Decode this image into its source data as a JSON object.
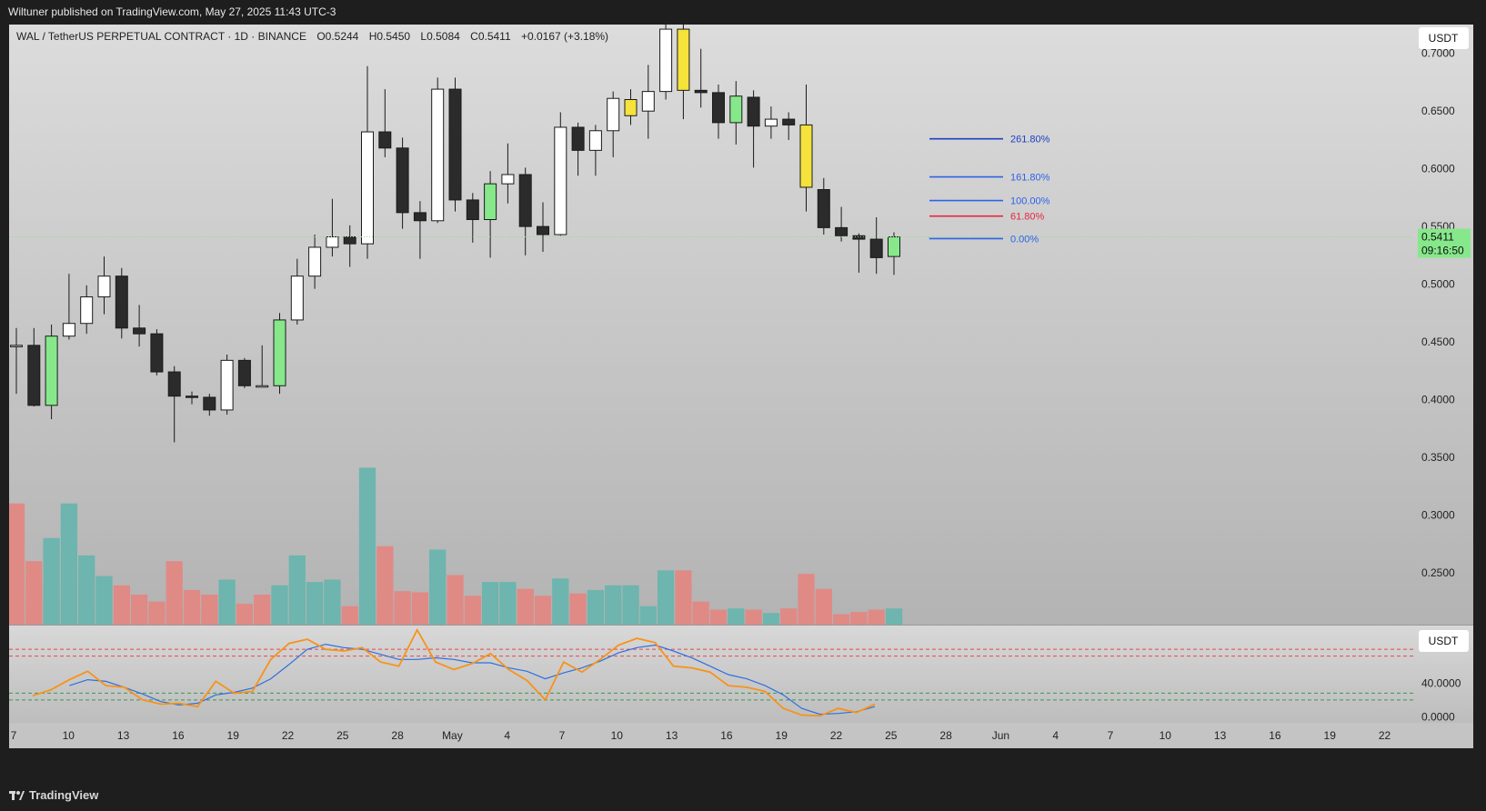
{
  "header": {
    "published": "Wiltuner published on TradingView.com, May 27, 2025 11:43 UTC-3"
  },
  "legend": {
    "symbol": "WAL / TetherUS PERPETUAL CONTRACT · 1D · BINANCE",
    "open": "O0.5244",
    "high": "H0.5450",
    "low": "L0.5084",
    "close": "C0.5411",
    "change": "+0.0167 (+3.18%)"
  },
  "price_axis": {
    "currency": "USDT",
    "ticks": [
      "0.7000",
      "0.6500",
      "0.6000",
      "0.5500",
      "0.5000",
      "0.4500",
      "0.4000",
      "0.3500",
      "0.3000",
      "0.2500"
    ],
    "last_price": "0.5411",
    "countdown": "09:16:50"
  },
  "osc_axis": {
    "currency": "USDT",
    "ticks": [
      "40.0000",
      "0.0000"
    ]
  },
  "time_axis": {
    "ticks": [
      "7",
      "10",
      "13",
      "16",
      "19",
      "22",
      "25",
      "28",
      "May",
      "4",
      "7",
      "10",
      "13",
      "16",
      "19",
      "22",
      "25",
      "28",
      "Jun",
      "4",
      "7",
      "10",
      "13",
      "16",
      "19",
      "22"
    ]
  },
  "footer": {
    "brand": "TradingView"
  },
  "colors": {
    "bull": "#ffffff",
    "bear": "#2b2b2b",
    "highlight_green": "#86e88a",
    "highlight_yellow": "#f5e23a",
    "vol_up": "#6db5ae",
    "vol_down": "#e08a86",
    "stoch_k": "#f7931a",
    "stoch_d": "#2e6fe0"
  },
  "chart_data": {
    "type": "candlestick",
    "price_range": [
      0.205,
      0.725
    ],
    "candles": [
      {
        "o": 0.447,
        "h": 0.462,
        "l": 0.405,
        "c": 0.447
      },
      {
        "o": 0.447,
        "h": 0.462,
        "l": 0.394,
        "c": 0.395,
        "hl": "none"
      },
      {
        "o": 0.395,
        "h": 0.465,
        "l": 0.383,
        "c": 0.455,
        "hl": "green"
      },
      {
        "o": 0.455,
        "h": 0.509,
        "l": 0.452,
        "c": 0.466
      },
      {
        "o": 0.466,
        "h": 0.499,
        "l": 0.457,
        "c": 0.489
      },
      {
        "o": 0.489,
        "h": 0.524,
        "l": 0.474,
        "c": 0.507
      },
      {
        "o": 0.507,
        "h": 0.514,
        "l": 0.453,
        "c": 0.462
      },
      {
        "o": 0.462,
        "h": 0.482,
        "l": 0.446,
        "c": 0.457
      },
      {
        "o": 0.457,
        "h": 0.461,
        "l": 0.421,
        "c": 0.424
      },
      {
        "o": 0.424,
        "h": 0.429,
        "l": 0.363,
        "c": 0.403
      },
      {
        "o": 0.403,
        "h": 0.407,
        "l": 0.396,
        "c": 0.402
      },
      {
        "o": 0.402,
        "h": 0.405,
        "l": 0.386,
        "c": 0.391
      },
      {
        "o": 0.391,
        "h": 0.439,
        "l": 0.387,
        "c": 0.434
      },
      {
        "o": 0.434,
        "h": 0.436,
        "l": 0.41,
        "c": 0.412
      },
      {
        "o": 0.412,
        "h": 0.447,
        "l": 0.411,
        "c": 0.412
      },
      {
        "o": 0.412,
        "h": 0.475,
        "l": 0.405,
        "c": 0.469,
        "hl": "green"
      },
      {
        "o": 0.469,
        "h": 0.522,
        "l": 0.465,
        "c": 0.507
      },
      {
        "o": 0.507,
        "h": 0.543,
        "l": 0.496,
        "c": 0.532
      },
      {
        "o": 0.532,
        "h": 0.574,
        "l": 0.524,
        "c": 0.541
      },
      {
        "o": 0.541,
        "h": 0.551,
        "l": 0.515,
        "c": 0.535
      },
      {
        "o": 0.535,
        "h": 0.689,
        "l": 0.522,
        "c": 0.632
      },
      {
        "o": 0.632,
        "h": 0.669,
        "l": 0.61,
        "c": 0.618
      },
      {
        "o": 0.618,
        "h": 0.627,
        "l": 0.548,
        "c": 0.562
      },
      {
        "o": 0.562,
        "h": 0.572,
        "l": 0.522,
        "c": 0.555
      },
      {
        "o": 0.555,
        "h": 0.679,
        "l": 0.553,
        "c": 0.669
      },
      {
        "o": 0.669,
        "h": 0.679,
        "l": 0.563,
        "c": 0.573
      },
      {
        "o": 0.573,
        "h": 0.579,
        "l": 0.536,
        "c": 0.556
      },
      {
        "o": 0.556,
        "h": 0.598,
        "l": 0.523,
        "c": 0.587,
        "hl": "green"
      },
      {
        "o": 0.587,
        "h": 0.622,
        "l": 0.57,
        "c": 0.595
      },
      {
        "o": 0.595,
        "h": 0.601,
        "l": 0.525,
        "c": 0.55
      },
      {
        "o": 0.55,
        "h": 0.571,
        "l": 0.528,
        "c": 0.543
      },
      {
        "o": 0.543,
        "h": 0.649,
        "l": 0.542,
        "c": 0.636
      },
      {
        "o": 0.636,
        "h": 0.64,
        "l": 0.594,
        "c": 0.616
      },
      {
        "o": 0.616,
        "h": 0.638,
        "l": 0.594,
        "c": 0.633
      },
      {
        "o": 0.633,
        "h": 0.667,
        "l": 0.61,
        "c": 0.661
      },
      {
        "o": 0.646,
        "h": 0.669,
        "l": 0.638,
        "c": 0.66,
        "hl": "yellow"
      },
      {
        "o": 0.65,
        "h": 0.69,
        "l": 0.626,
        "c": 0.667
      },
      {
        "o": 0.667,
        "h": 0.73,
        "l": 0.66,
        "c": 0.721
      },
      {
        "o": 0.721,
        "h": 0.73,
        "l": 0.643,
        "c": 0.668,
        "hl": "yellow"
      },
      {
        "o": 0.668,
        "h": 0.704,
        "l": 0.653,
        "c": 0.666
      },
      {
        "o": 0.666,
        "h": 0.673,
        "l": 0.626,
        "c": 0.64
      },
      {
        "o": 0.64,
        "h": 0.676,
        "l": 0.621,
        "c": 0.663,
        "hl": "green"
      },
      {
        "o": 0.662,
        "h": 0.668,
        "l": 0.601,
        "c": 0.637
      },
      {
        "o": 0.637,
        "h": 0.654,
        "l": 0.626,
        "c": 0.643
      },
      {
        "o": 0.643,
        "h": 0.649,
        "l": 0.625,
        "c": 0.638
      },
      {
        "o": 0.638,
        "h": 0.673,
        "l": 0.563,
        "c": 0.584,
        "hl": "yellow"
      },
      {
        "o": 0.582,
        "h": 0.592,
        "l": 0.543,
        "c": 0.549
      },
      {
        "o": 0.549,
        "h": 0.567,
        "l": 0.537,
        "c": 0.542
      },
      {
        "o": 0.542,
        "h": 0.544,
        "l": 0.51,
        "c": 0.539
      },
      {
        "o": 0.539,
        "h": 0.558,
        "l": 0.509,
        "c": 0.523
      },
      {
        "o": 0.524,
        "h": 0.545,
        "l": 0.508,
        "c": 0.541,
        "hl": "green"
      }
    ],
    "volume": [
      {
        "v": 0.31,
        "up": false
      },
      {
        "v": 0.26,
        "up": false
      },
      {
        "v": 0.28,
        "up": true
      },
      {
        "v": 0.31,
        "up": true
      },
      {
        "v": 0.265,
        "up": true
      },
      {
        "v": 0.247,
        "up": true
      },
      {
        "v": 0.239,
        "up": false
      },
      {
        "v": 0.231,
        "up": false
      },
      {
        "v": 0.225,
        "up": false
      },
      {
        "v": 0.26,
        "up": false
      },
      {
        "v": 0.235,
        "up": false
      },
      {
        "v": 0.231,
        "up": false
      },
      {
        "v": 0.244,
        "up": true
      },
      {
        "v": 0.223,
        "up": false
      },
      {
        "v": 0.231,
        "up": false
      },
      {
        "v": 0.239,
        "up": true
      },
      {
        "v": 0.265,
        "up": true
      },
      {
        "v": 0.242,
        "up": true
      },
      {
        "v": 0.244,
        "up": true
      },
      {
        "v": 0.221,
        "up": false
      },
      {
        "v": 0.341,
        "up": true
      },
      {
        "v": 0.273,
        "up": false
      },
      {
        "v": 0.234,
        "up": false
      },
      {
        "v": 0.233,
        "up": false
      },
      {
        "v": 0.27,
        "up": true
      },
      {
        "v": 0.248,
        "up": false
      },
      {
        "v": 0.23,
        "up": false
      },
      {
        "v": 0.242,
        "up": true
      },
      {
        "v": 0.242,
        "up": true
      },
      {
        "v": 0.236,
        "up": false
      },
      {
        "v": 0.23,
        "up": false
      },
      {
        "v": 0.245,
        "up": true
      },
      {
        "v": 0.232,
        "up": false
      },
      {
        "v": 0.235,
        "up": true
      },
      {
        "v": 0.239,
        "up": true
      },
      {
        "v": 0.239,
        "up": true
      },
      {
        "v": 0.221,
        "up": true
      },
      {
        "v": 0.252,
        "up": true
      },
      {
        "v": 0.252,
        "up": false
      },
      {
        "v": 0.225,
        "up": false
      },
      {
        "v": 0.218,
        "up": false
      },
      {
        "v": 0.219,
        "up": true
      },
      {
        "v": 0.218,
        "up": false
      },
      {
        "v": 0.215,
        "up": true
      },
      {
        "v": 0.219,
        "up": false
      },
      {
        "v": 0.249,
        "up": false
      },
      {
        "v": 0.236,
        "up": false
      },
      {
        "v": 0.214,
        "up": false
      },
      {
        "v": 0.216,
        "up": false
      },
      {
        "v": 0.218,
        "up": false
      },
      {
        "v": 0.219,
        "up": true
      }
    ],
    "fib_levels": [
      {
        "label": "261.80%",
        "price": 0.626,
        "color": "#1e3fc4"
      },
      {
        "label": "161.80%",
        "price": 0.593,
        "color": "#2e62e8"
      },
      {
        "label": "100.00%",
        "price": 0.5725,
        "color": "#2e62e8"
      },
      {
        "label": "61.80%",
        "price": 0.559,
        "color": "#e8253f"
      },
      {
        "label": "0.00%",
        "price": 0.5395,
        "color": "#2e62e8"
      }
    ],
    "oscillator": {
      "range": [
        -5,
        105
      ],
      "upper_bands": [
        80,
        72
      ],
      "lower_bands": [
        28,
        20
      ],
      "k": [
        25,
        32,
        44,
        54,
        37,
        35,
        20,
        15,
        16,
        12,
        42,
        28,
        30,
        68,
        87,
        92,
        80,
        78,
        82,
        65,
        60,
        103,
        65,
        56,
        63,
        75,
        56,
        43,
        20,
        65,
        53,
        68,
        85,
        93,
        88,
        60,
        58,
        53,
        37,
        35,
        30,
        10,
        2,
        1,
        10,
        5,
        15
      ],
      "d": [
        null,
        null,
        37,
        44,
        42,
        35,
        27,
        18,
        14,
        16,
        26,
        29,
        34,
        45,
        62,
        80,
        86,
        82,
        80,
        74,
        68,
        68,
        70,
        68,
        64,
        64,
        58,
        54,
        45,
        52,
        58,
        66,
        76,
        82,
        85,
        78,
        70,
        60,
        50,
        45,
        37,
        26,
        10,
        3,
        4,
        6,
        12
      ]
    }
  }
}
